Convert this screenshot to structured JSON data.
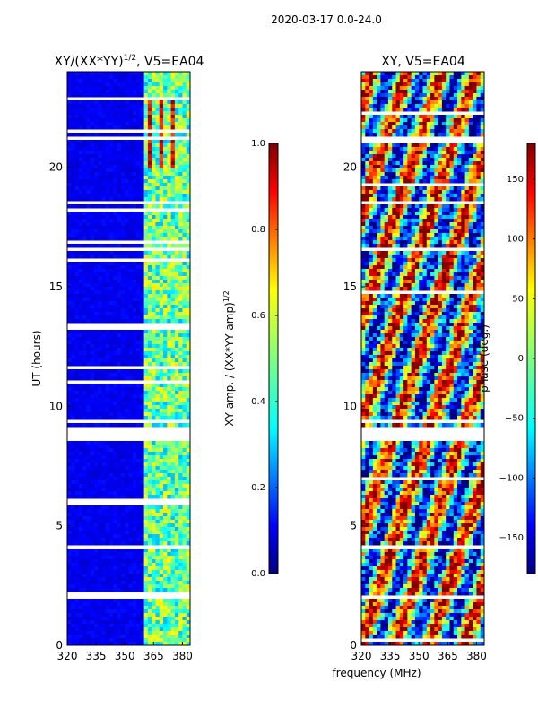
{
  "figure": {
    "suptitle": "2020-03-17 0.0-24.0",
    "xlabel": "frequency (MHz)"
  },
  "colors": {
    "jet": [
      "#00007f",
      "#0000ff",
      "#007fff",
      "#00ffff",
      "#7fff7f",
      "#ffff00",
      "#ff7f00",
      "#ff0000",
      "#7f0000"
    ]
  },
  "chart_data": [
    {
      "type": "heatmap",
      "title_main": "XY/(XX*YY)",
      "title_sup": "1/2",
      "title_rest": ", V5=EA04",
      "ylabel": "UT (hours)",
      "x_ticks": [
        "320",
        "335",
        "350",
        "365",
        "380"
      ],
      "x_tick_values": [
        320,
        335,
        350,
        365,
        380
      ],
      "y_ticks": [
        "0",
        "5",
        "10",
        "15",
        "20"
      ],
      "y_tick_values": [
        0,
        5,
        10,
        15,
        20
      ],
      "xlim": [
        320,
        384
      ],
      "ylim": [
        0,
        24
      ],
      "colorbar": {
        "label_main": "XY amp. / (XX*YY amp)",
        "label_sup": "1/2",
        "ticks": [
          "0.0",
          "0.2",
          "0.4",
          "0.6",
          "0.8",
          "1.0"
        ],
        "tick_values": [
          0.0,
          0.2,
          0.4,
          0.6,
          0.8,
          1.0
        ],
        "range": [
          0.0,
          1.0
        ]
      }
    },
    {
      "type": "heatmap",
      "title": "XY, V5=EA04",
      "x_ticks": [
        "320",
        "335",
        "350",
        "365",
        "380"
      ],
      "x_tick_values": [
        320,
        335,
        350,
        365,
        380
      ],
      "y_ticks": [
        "0",
        "5",
        "10",
        "15",
        "20"
      ],
      "y_tick_values": [
        0,
        5,
        10,
        15,
        20
      ],
      "xlim": [
        320,
        384
      ],
      "ylim": [
        0,
        24
      ],
      "colorbar": {
        "label": "phase (deg.)",
        "ticks": [
          "−150",
          "−100",
          "−50",
          "0",
          "50",
          "100",
          "150"
        ],
        "tick_values": [
          -150,
          -100,
          -50,
          0,
          50,
          100,
          150
        ],
        "range": [
          -180,
          180
        ]
      }
    }
  ]
}
